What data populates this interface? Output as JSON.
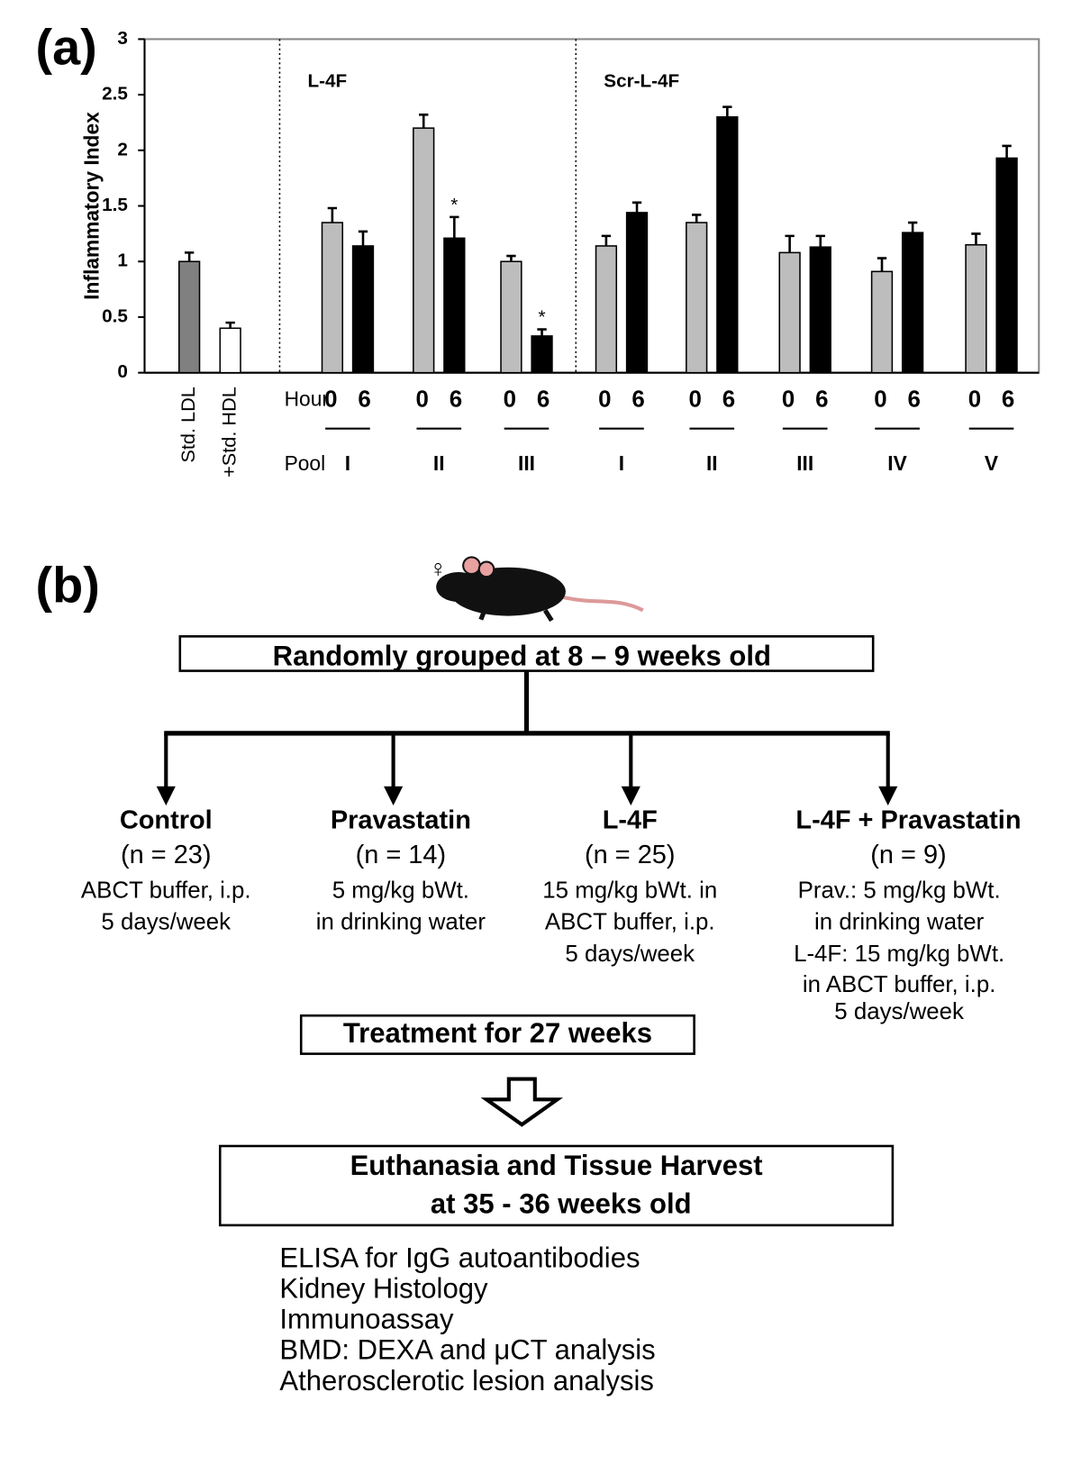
{
  "chart_data": {
    "type": "bar",
    "panel_label": "(a)",
    "ylabel": "Inflammatory Index",
    "ylim": [
      0,
      3
    ],
    "yticks": [
      0,
      0.5,
      1,
      1.5,
      2,
      2.5,
      3
    ],
    "standards": [
      {
        "label": "Std. LDL",
        "value": 1.0,
        "error": 0.08,
        "color": "#808080"
      },
      {
        "label": "+Std. HDL",
        "value": 0.4,
        "error": 0.05,
        "color": "#ffffff"
      }
    ],
    "hour_label": "Hour",
    "pool_label": "Pool",
    "hours": [
      0,
      6
    ],
    "hour_colors": [
      "#bdbdbd",
      "#000000"
    ],
    "annotation": "*",
    "groups": [
      {
        "name": "L-4F",
        "pools": [
          {
            "label": "I",
            "values": [
              1.35,
              1.14
            ],
            "errors": [
              0.13,
              0.13
            ],
            "significant": [
              false,
              false
            ]
          },
          {
            "label": "II",
            "values": [
              2.2,
              1.21
            ],
            "errors": [
              0.12,
              0.19
            ],
            "significant": [
              false,
              true
            ]
          },
          {
            "label": "III",
            "values": [
              1.0,
              0.33
            ],
            "errors": [
              0.05,
              0.06
            ],
            "significant": [
              false,
              true
            ]
          }
        ]
      },
      {
        "name": "Scr-L-4F",
        "pools": [
          {
            "label": "I",
            "values": [
              1.14,
              1.44
            ],
            "errors": [
              0.09,
              0.09
            ],
            "significant": [
              false,
              false
            ]
          },
          {
            "label": "II",
            "values": [
              1.35,
              2.3
            ],
            "errors": [
              0.07,
              0.09
            ],
            "significant": [
              false,
              false
            ]
          },
          {
            "label": "III",
            "values": [
              1.08,
              1.13
            ],
            "errors": [
              0.15,
              0.1
            ],
            "significant": [
              false,
              false
            ]
          },
          {
            "label": "IV",
            "values": [
              0.91,
              1.26
            ],
            "errors": [
              0.12,
              0.09
            ],
            "significant": [
              false,
              false
            ]
          },
          {
            "label": "V",
            "values": [
              1.15,
              1.93
            ],
            "errors": [
              0.1,
              0.11
            ],
            "significant": [
              false,
              false
            ]
          }
        ]
      }
    ]
  },
  "diagram": {
    "panel_label": "(b)",
    "sex_symbol": "♀",
    "start": "Randomly grouped at 8 – 9 weeks old",
    "groups": [
      {
        "name": "Control",
        "n": "(n = 23)",
        "details": [
          "ABCT buffer, i.p.",
          "5 days/week"
        ]
      },
      {
        "name": "Pravastatin",
        "n": "(n = 14)",
        "details": [
          "5 mg/kg  bWt.",
          "in drinking water"
        ]
      },
      {
        "name": "L-4F",
        "n": "(n = 25)",
        "details": [
          "15 mg/kg  bWt. in",
          "ABCT buffer, i.p.",
          "5 days/week"
        ]
      },
      {
        "name": "L-4F + Pravastatin",
        "n": "(n = 9)",
        "details": [
          "Prav.: 5 mg/kg  bWt.",
          "in drinking water",
          "L-4F: 15 mg/kg bWt.",
          "in ABCT buffer, i.p.",
          "5 days/week"
        ]
      }
    ],
    "treatment": "Treatment for 27 weeks",
    "end": [
      "Euthanasia and Tissue Harvest",
      "at 35 - 36 weeks old"
    ],
    "analyses": [
      "ELISA for IgG autoantibodies",
      "Kidney Histology",
      "Immunoassay",
      "BMD: DEXA and μCT analysis",
      "Atherosclerotic lesion analysis"
    ]
  }
}
